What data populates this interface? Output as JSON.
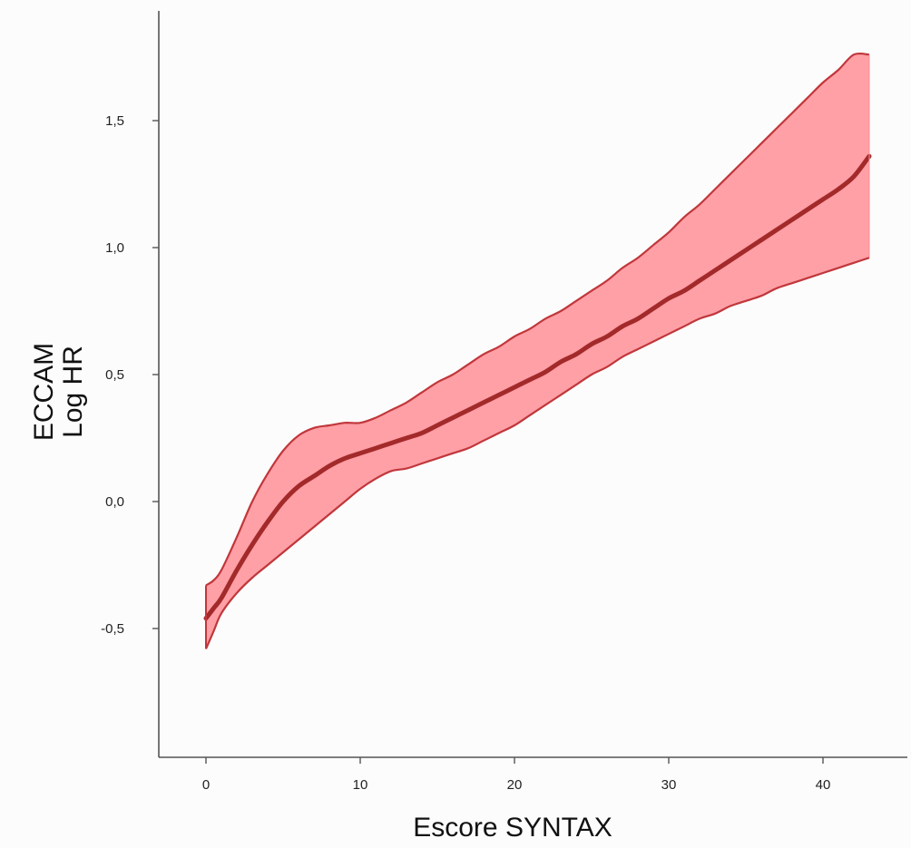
{
  "chart_data": {
    "type": "line",
    "xlabel": "Escore SYNTAX",
    "ylabel_lines": [
      "ECCAM",
      "Log HR"
    ],
    "xlim": [
      -3,
      46
    ],
    "ylim": [
      -1.0,
      1.95
    ],
    "x_ticks": [
      0,
      10,
      20,
      30,
      40
    ],
    "x_tick_labels": [
      "0",
      "10",
      "20",
      "30",
      "40"
    ],
    "y_ticks": [
      -0.5,
      0.0,
      0.5,
      1.0,
      1.5
    ],
    "y_tick_labels": [
      "-0,5",
      "0,0",
      "0,5",
      "1,0",
      "1,5"
    ],
    "grid": false,
    "colors": {
      "line": "#a32a2a",
      "band_fill": "#ff8e96",
      "band_edge": "#c0373b",
      "axis": "#555555"
    },
    "x": [
      0,
      0.5,
      1,
      2,
      3,
      4,
      5,
      6,
      7,
      8,
      9,
      10,
      11,
      12,
      13,
      14,
      15,
      16,
      17,
      18,
      19,
      20,
      21,
      22,
      23,
      24,
      25,
      26,
      27,
      28,
      29,
      30,
      31,
      32,
      33,
      34,
      35,
      36,
      37,
      38,
      39,
      40,
      41,
      42,
      43
    ],
    "series": [
      {
        "values": [
          -0.46,
          -0.42,
          -0.38,
          -0.27,
          -0.17,
          -0.08,
          0.0,
          0.06,
          0.1,
          0.14,
          0.17,
          0.19,
          0.21,
          0.23,
          0.25,
          0.27,
          0.3,
          0.33,
          0.36,
          0.39,
          0.42,
          0.45,
          0.48,
          0.51,
          0.55,
          0.58,
          0.62,
          0.65,
          0.69,
          0.72,
          0.76,
          0.8,
          0.83,
          0.87,
          0.91,
          0.95,
          0.99,
          1.03,
          1.07,
          1.11,
          1.15,
          1.19,
          1.23,
          1.28,
          1.36
        ]
      }
    ],
    "band": {
      "upper": [
        -0.33,
        -0.31,
        -0.27,
        -0.14,
        0.0,
        0.11,
        0.2,
        0.26,
        0.29,
        0.3,
        0.31,
        0.31,
        0.33,
        0.36,
        0.39,
        0.43,
        0.47,
        0.5,
        0.54,
        0.58,
        0.61,
        0.65,
        0.68,
        0.72,
        0.75,
        0.79,
        0.83,
        0.87,
        0.92,
        0.96,
        1.01,
        1.06,
        1.12,
        1.17,
        1.23,
        1.29,
        1.35,
        1.41,
        1.47,
        1.53,
        1.59,
        1.65,
        1.7,
        1.76,
        1.76
      ],
      "lower": [
        -0.58,
        -0.51,
        -0.44,
        -0.36,
        -0.3,
        -0.25,
        -0.2,
        -0.15,
        -0.1,
        -0.05,
        0.0,
        0.05,
        0.09,
        0.12,
        0.13,
        0.15,
        0.17,
        0.19,
        0.21,
        0.24,
        0.27,
        0.3,
        0.34,
        0.38,
        0.42,
        0.46,
        0.5,
        0.53,
        0.57,
        0.6,
        0.63,
        0.66,
        0.69,
        0.72,
        0.74,
        0.77,
        0.79,
        0.81,
        0.84,
        0.86,
        0.88,
        0.9,
        0.92,
        0.94,
        0.96
      ]
    }
  }
}
